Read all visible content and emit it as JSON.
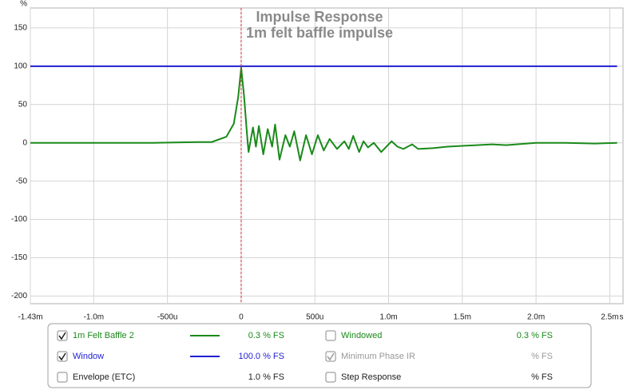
{
  "chart_data": {
    "type": "line",
    "title": "Impulse Response",
    "subtitle": "1m felt baffle impulse",
    "xlabel": "s",
    "ylabel": "%",
    "x": [
      -1.43,
      -1.0,
      -0.6,
      -0.3,
      -0.2,
      -0.1,
      -0.05,
      -0.02,
      0,
      0.02,
      0.04,
      0.05,
      0.08,
      0.1,
      0.12,
      0.15,
      0.18,
      0.21,
      0.23,
      0.26,
      0.3,
      0.33,
      0.36,
      0.4,
      0.44,
      0.48,
      0.52,
      0.56,
      0.6,
      0.65,
      0.7,
      0.73,
      0.76,
      0.8,
      0.83,
      0.86,
      0.9,
      0.95,
      1.02,
      1.06,
      1.1,
      1.16,
      1.2,
      1.3,
      1.4,
      1.5,
      1.6,
      1.7,
      1.8,
      2.0,
      2.2,
      2.4,
      2.55
    ],
    "series": [
      {
        "name": "1m Felt Baffle 2",
        "color": "#1a8a1a",
        "readout": "0.3 % FS",
        "checked": true,
        "values": [
          0,
          0,
          0,
          1,
          1,
          8,
          25,
          60,
          98,
          60,
          10,
          -12,
          20,
          -5,
          22,
          -15,
          18,
          -5,
          24,
          -22,
          10,
          -5,
          15,
          -23,
          10,
          -15,
          10,
          -10,
          5,
          -8,
          2,
          -8,
          9,
          -12,
          2,
          -6,
          0,
          -12,
          2,
          -5,
          -8,
          -2,
          -8,
          -7,
          -5,
          -4,
          -3,
          -2,
          -3,
          0,
          0,
          -1,
          0
        ]
      },
      {
        "name": "Window",
        "color": "#1f1fd0",
        "readout": "100.0 % FS",
        "checked": true,
        "values": [
          100,
          100,
          100,
          100,
          100,
          100,
          100,
          100,
          100,
          100,
          100,
          100,
          100,
          100,
          100,
          100,
          100,
          100,
          100,
          100,
          100,
          100,
          100,
          100,
          100,
          100,
          100,
          100,
          100,
          100,
          100,
          100,
          100,
          100,
          100,
          100,
          100,
          100,
          100,
          100,
          100,
          100,
          100,
          100,
          100,
          100,
          100,
          100,
          100,
          100,
          100,
          100,
          100
        ]
      }
    ],
    "options": [
      {
        "label": "Envelope (ETC)",
        "checked": false,
        "readout": "1.0 % FS",
        "color": "#222222"
      },
      {
        "label": "Windowed",
        "checked": false,
        "readout": "0.3 % FS",
        "color": "#1a8a1a"
      },
      {
        "label": "Minimum Phase IR",
        "checked": true,
        "readout": "% FS",
        "color": "#999999"
      },
      {
        "label": "Step Response",
        "checked": false,
        "readout": "% FS",
        "color": "#222222"
      }
    ],
    "cursor_x": 0,
    "xlim": [
      -1.43,
      2.59
    ],
    "ylim": [
      -210,
      176
    ],
    "xticks": [
      {
        "value": -1.43,
        "label": "-1.43m"
      },
      {
        "value": -1.0,
        "label": "-1.0m"
      },
      {
        "value": -0.5,
        "label": "-500u"
      },
      0,
      {
        "value": 0.5,
        "label": "500u"
      },
      {
        "value": 1.0,
        "label": "1.0m"
      },
      {
        "value": 1.5,
        "label": "1.5m"
      },
      {
        "value": 2.0,
        "label": "2.0m"
      },
      {
        "value": 2.5,
        "label": "2.5m"
      }
    ],
    "yticks": [
      -200,
      -150,
      -100,
      -50,
      0,
      50,
      100,
      150
    ],
    "grid": true
  }
}
